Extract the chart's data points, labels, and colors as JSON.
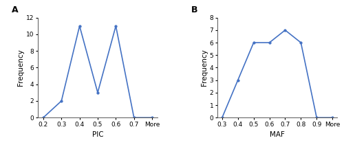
{
  "chart_A": {
    "label": "A",
    "x_labels": [
      "0.2",
      "0.3",
      "0.4",
      "0.5",
      "0.6",
      "0.7",
      "More"
    ],
    "y_values": [
      0,
      2,
      11,
      3,
      11,
      0,
      0
    ],
    "xlabel": "PIC",
    "ylabel": "Frequency",
    "ylim": [
      0,
      12
    ],
    "yticks": [
      0,
      2,
      4,
      6,
      8,
      10,
      12
    ]
  },
  "chart_B": {
    "label": "B",
    "x_labels": [
      "0.3",
      "0.4",
      "0.5",
      "0.6",
      "0.7",
      "0.8",
      "0.9",
      "More"
    ],
    "y_values": [
      0,
      3,
      6,
      6,
      7,
      6,
      0,
      0
    ],
    "xlabel": "MAF",
    "ylabel": "Frequency",
    "ylim": [
      0,
      8
    ],
    "yticks": [
      0,
      1,
      2,
      3,
      4,
      5,
      6,
      7,
      8
    ]
  },
  "line_color": "#4472C4",
  "line_width": 1.2,
  "marker": "o",
  "marker_size": 2.5,
  "label_fontsize": 9,
  "tick_fontsize": 6.5,
  "axis_label_fontsize": 7.5,
  "figure_bgcolor": "#ffffff"
}
